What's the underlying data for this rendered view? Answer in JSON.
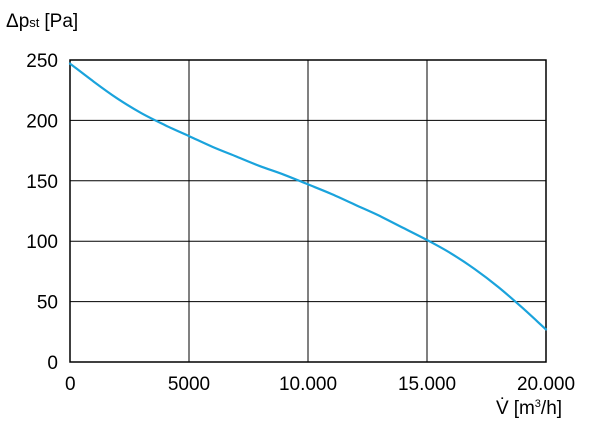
{
  "chart_data": {
    "type": "line",
    "ylabel": {
      "symbol": "Δp",
      "subscript": "st",
      "unit": "[Pa]"
    },
    "xlabel": {
      "symbol": "V̇",
      "unit_pre": "[m",
      "unit_sup": "3",
      "unit_post": "/h]"
    },
    "xlim": [
      0,
      20000
    ],
    "ylim": [
      0,
      250
    ],
    "x_ticks": [
      {
        "value": 0,
        "label": "0"
      },
      {
        "value": 5000,
        "label": "5000"
      },
      {
        "value": 10000,
        "label": "10.000"
      },
      {
        "value": 15000,
        "label": "15.000"
      },
      {
        "value": 20000,
        "label": "20.000"
      }
    ],
    "y_ticks": [
      {
        "value": 0,
        "label": "0"
      },
      {
        "value": 50,
        "label": "50"
      },
      {
        "value": 100,
        "label": "100"
      },
      {
        "value": 150,
        "label": "150"
      },
      {
        "value": 200,
        "label": "200"
      },
      {
        "value": 250,
        "label": "250"
      }
    ],
    "grid": true,
    "series": [
      {
        "color": "#1aa3dc",
        "x": [
          0,
          1000,
          2000,
          3000,
          4000,
          5000,
          6000,
          7000,
          8000,
          9000,
          10000,
          11000,
          12000,
          13000,
          14000,
          15000,
          16000,
          17000,
          18000,
          19000,
          20000
        ],
        "y": [
          247,
          232,
          218,
          206,
          196,
          187,
          178,
          170,
          162,
          155,
          147,
          139,
          130,
          121,
          111,
          101,
          90,
          77,
          62,
          45,
          27
        ]
      }
    ]
  }
}
